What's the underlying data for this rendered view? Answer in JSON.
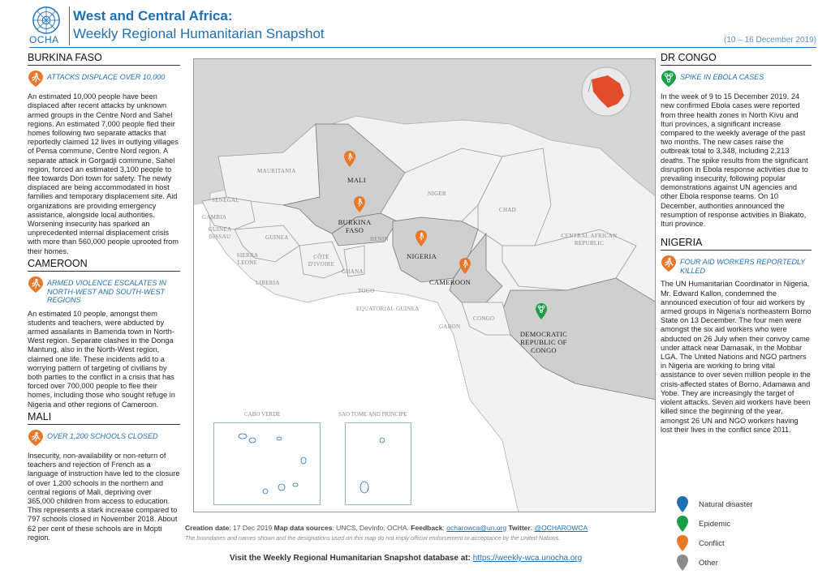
{
  "header": {
    "org": "OCHA",
    "title": "West and Central Africa:",
    "subtitle": "Weekly Regional Humanitarian Snapshot",
    "date_range": "(10 – 16 December 2019)"
  },
  "colors": {
    "brand_blue": "#1f6fb3",
    "conflict": "#e8792b",
    "epidemic": "#1a9e4a",
    "natural_disaster": "#1f6fb3",
    "other": "#8c8c8c"
  },
  "left": {
    "burkina": {
      "title": "BURKINA FASO",
      "heading": "ATTACKS DISPLACE OVER 10,000",
      "icon": "conflict-icon",
      "body": "An estimated 10,000 people have been displaced after recent attacks by unknown armed groups in the Centre Nord and Sahel regions. An estimated 7,000 people fled their homes following two separate attacks that reportedly claimed 12 lives in outlying villages of Pensa commune, Centre Nord region. A separate attack in Gorgadji commune, Sahel region, forced an estimated 3,100 people to flee towards Dori town for safety. The newly displaced are being accommodated in host families and temporary displacement site. Aid organizations are providing emergency assistance, alongside local authorities. Worsening insecurity has sparked an unprecedented internal displacement crisis with more than 560,000 people uprooted from their homes."
    },
    "cameroon": {
      "title": "CAMEROON",
      "heading": "ARMED VIOLENCE ESCALATES IN NORTH-WEST AND SOUTH-WEST REGIONS",
      "icon": "conflict-icon",
      "body": "An estimated 10 people, amongst them students and teachers, were abducted by armed assailants in Bamenda town in North-West region. Separate clashes in the Donga Mantung, also in the North-West region, claimed one life. These incidents add to a worrying pattern of targeting of civilians by both parties to the conflict in a crisis that has forced over 700,000 people to flee their homes, including those who sought refuge in Nigeria and other regions of Cameroon."
    },
    "mali": {
      "title": "MALI",
      "heading": "OVER 1,200 SCHOOLS CLOSED",
      "icon": "conflict-icon",
      "body": "Insecurity, non-availability or non-return of teachers and rejection of French as a language of instruction have led to the closure of over 1,200 schools in the northern and central regions of Mali, depriving over 365,000 children from access to education. This represents a stark increase compared to 797 schools closed in November 2018. About 62 per cent of these schools are in Mopti region."
    }
  },
  "right": {
    "drc": {
      "title": "DR CONGO",
      "heading": "SPIKE IN EBOLA CASES",
      "icon": "epidemic-icon",
      "body": "In the week of 9 to 15 December 2019, 24 new confirmed Ebola cases were reported from three health zones in North Kivu and Ituri provinces, a significant increase compared to the weekly average of the past two months. The new cases raise the outbreak total to 3,348, including 2,213 deaths. The spike results from the significant disruption in Ebola response activities due to prevailing insecurity, following popular demonstrations against UN agencies and other Ebola response teams. On 10 December, authorities announced the resumption of response activities in Biakato, Ituri province."
    },
    "nigeria": {
      "title": "NIGERIA",
      "heading": "FOUR AID WORKERS REPORTEDLY KILLED",
      "icon": "conflict-icon",
      "body": "The UN Humanitarian Coordinator in Nigeria, Mr. Edward Kallon, condemned the announced execution of four aid workers by armed groups in Nigeria's northeastern Borno State on 13 December. The four men were amongst the six aid workers who were abducted on 26 July when their convoy came under attack near Damasak, in the Mobbar LGA. The United Nations and NGO partners in Nigeria are working to bring vital assistance to over seven million people in the crisis-affected states of Borno, Adamawa and Yobe. They are increasingly the target of violent attacks. Seven aid workers have been killed since the beginning of the year, amongst 26 UN and NGO workers having lost their lives in the conflict since 2011."
    }
  },
  "map": {
    "labels": {
      "mauritania": "MAURITANIA",
      "mali": "MALI",
      "niger": "NIGER",
      "chad": "CHAD",
      "senegal": "SENEGAL",
      "gambia": "GAMBIA",
      "guinea_bissau": "GUINEA BISSAU",
      "guinea": "GUINEA",
      "burkina": "BURKINA FASO",
      "benin": "BENIN",
      "nigeria": "NIGERIA",
      "car": "CENTRAL AFRICAN REPUBLIC",
      "sierra_leone": "SIERRA LEONE",
      "cote_divoire": "CÔTE D'IVOIRE",
      "ghana": "GHANA",
      "liberia": "LIBERIA",
      "togo": "TOGO",
      "cameroon": "CAMEROON",
      "eq_guinea": "EQUATORIAL GUINEA",
      "gabon": "GABON",
      "congo": "CONGO",
      "drc": "DEMOCRATIC REPUBLIC OF CONGO",
      "cabo_verde": "CABO VERDE",
      "sao_tome": "SAO TOME AND PRINCIPE"
    },
    "pins": [
      {
        "place": "Mali",
        "type": "conflict"
      },
      {
        "place": "Burkina Faso",
        "type": "conflict"
      },
      {
        "place": "Nigeria",
        "type": "conflict"
      },
      {
        "place": "Cameroon",
        "type": "conflict"
      },
      {
        "place": "DR Congo",
        "type": "epidemic"
      }
    ]
  },
  "footer": {
    "creation_label": "Creation date",
    "creation_value": ": 17 Dec 2019",
    "sources_label": "Map data sources",
    "sources_value": ": UNCS, DevInfo, OCHA.",
    "feedback_label": "Feedback",
    "feedback_email": "ocharowca@un.org",
    "twitter_label": "Twitter",
    "twitter_handle": "@OCHAROWCA",
    "disclaimer": "The boundaries and names shown and the designations used on this map do not imply official endorsement or acceptance by the United Nations.",
    "visit_text": "Visit the Weekly Regional Humanitarian Snapshot database at:",
    "visit_url": "https://weekly-wca.unocha.org"
  },
  "legend": [
    {
      "label": "Natural disaster",
      "color": "#1f6fb3",
      "icon": "natural-disaster-pin-icon"
    },
    {
      "label": "Epidemic",
      "color": "#1a9e4a",
      "icon": "epidemic-pin-icon"
    },
    {
      "label": "Conflict",
      "color": "#e8792b",
      "icon": "conflict-pin-icon"
    },
    {
      "label": "Other",
      "color": "#8c8c8c",
      "icon": "other-pin-icon"
    }
  ]
}
